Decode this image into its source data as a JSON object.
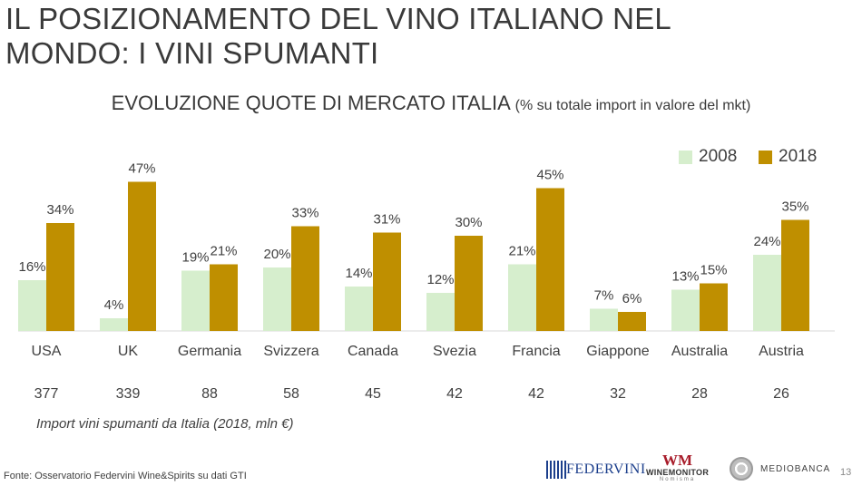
{
  "slide": {
    "title_line1": "IL POSIZIONAMENTO DEL VINO ITALIANO NEL",
    "title_line2": "MONDO: I VINI SPUMANTI",
    "subtitle_main": "EVOLUZIONE QUOTE DI MERCATO ITALIA",
    "subtitle_note": "(% su totale import in valore del mkt)",
    "import_label": "Import vini spumanti da Italia (2018, mln €)",
    "source": "Fonte: Osservatorio Federvini Wine&Spirits su dati GTI",
    "page_number": "13",
    "logos": {
      "federvini": "FEDERVINI",
      "winemonitor_mark": "WM",
      "winemonitor": "WINEMONITOR",
      "winemonitor_sub": "Nomisma",
      "mediobanca": "MEDIOBANCA"
    }
  },
  "chart_data": {
    "type": "bar",
    "title": "EVOLUZIONE QUOTE DI MERCATO ITALIA",
    "subtitle": "(% su totale import in valore del mkt)",
    "ylabel": "%",
    "ylim": [
      0,
      50
    ],
    "categories": [
      "USA",
      "UK",
      "Germania",
      "Svizzera",
      "Canada",
      "Svezia",
      "Francia",
      "Giappone",
      "Australia",
      "Austria"
    ],
    "series": [
      {
        "name": "2008",
        "color": "#d6eecd",
        "values": [
          16,
          4,
          19,
          20,
          14,
          12,
          21,
          7,
          13,
          24
        ]
      },
      {
        "name": "2018",
        "color": "#bf8f00",
        "values": [
          34,
          47,
          21,
          33,
          31,
          30,
          45,
          6,
          15,
          35
        ]
      }
    ],
    "import_values": [
      377,
      339,
      88,
      58,
      45,
      42,
      42,
      32,
      28,
      26
    ],
    "legend_position": "top-right"
  }
}
